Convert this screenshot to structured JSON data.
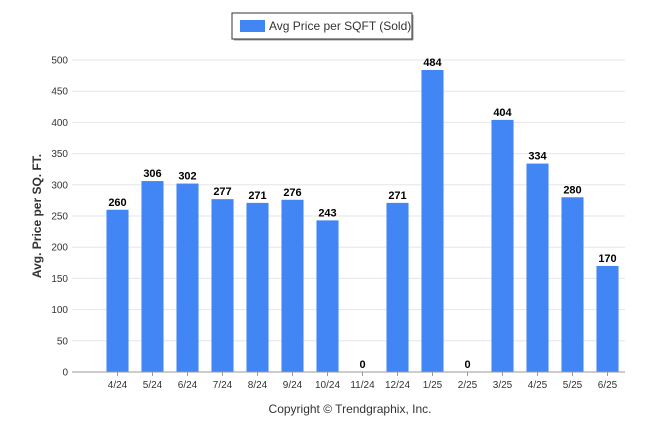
{
  "chart_data": {
    "type": "bar",
    "categories": [
      "4/24",
      "5/24",
      "6/24",
      "7/24",
      "8/24",
      "9/24",
      "10/24",
      "11/24",
      "12/24",
      "1/25",
      "2/25",
      "3/25",
      "4/25",
      "5/25",
      "6/25"
    ],
    "series": [
      {
        "name": "Avg Price per SQFT (Sold)",
        "values": [
          260,
          306,
          302,
          277,
          271,
          276,
          243,
          0,
          271,
          484,
          0,
          404,
          334,
          280,
          170
        ],
        "color": "#4285f4"
      }
    ],
    "ylabel": "Avg. Price per SQ. FT.",
    "xlabel": "",
    "ylim": [
      0,
      500
    ],
    "yticks": [
      0,
      50,
      100,
      150,
      200,
      250,
      300,
      350,
      400,
      450,
      500
    ],
    "grid": true,
    "legend_position": "top-center",
    "data_labels": true
  },
  "footer": {
    "copyright": "Copyright © Trendgraphix, Inc."
  }
}
